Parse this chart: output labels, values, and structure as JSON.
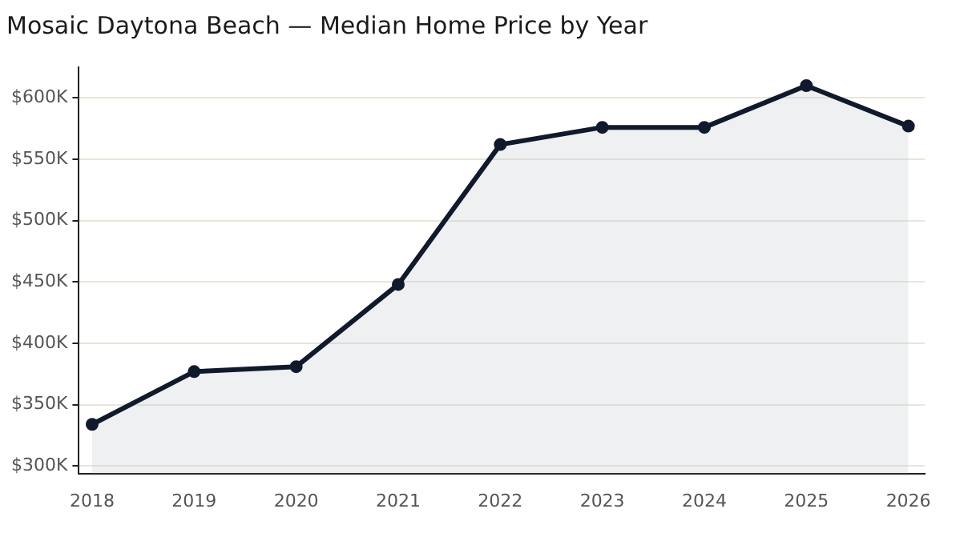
{
  "chart_data": {
    "type": "area",
    "title": "Mosaic Daytona Beach — Median Home Price by Year",
    "x": [
      2018,
      2019,
      2020,
      2021,
      2022,
      2023,
      2024,
      2025,
      2026
    ],
    "series": [
      {
        "color": "#111a2c",
        "values": [
          334000,
          377000,
          381000,
          448000,
          562000,
          576000,
          576000,
          610000,
          577000
        ]
      }
    ],
    "xlim": [
      2017.87,
      2026.16
    ],
    "xticks": [
      2018,
      2019,
      2020,
      2021,
      2022,
      2023,
      2024,
      2025,
      2026
    ],
    "ylim": [
      294000,
      625000
    ],
    "yticks": [
      {
        "value": 300000,
        "label": "$300K"
      },
      {
        "value": 350000,
        "label": "$350K"
      },
      {
        "value": 400000,
        "label": "$400K"
      },
      {
        "value": 450000,
        "label": "$450K"
      },
      {
        "value": 500000,
        "label": "$500K"
      },
      {
        "value": 550000,
        "label": "$550K"
      },
      {
        "value": 600000,
        "label": "$600K"
      }
    ],
    "grid": "y",
    "marker": "circle",
    "line_style": "solid",
    "legend": false
  }
}
